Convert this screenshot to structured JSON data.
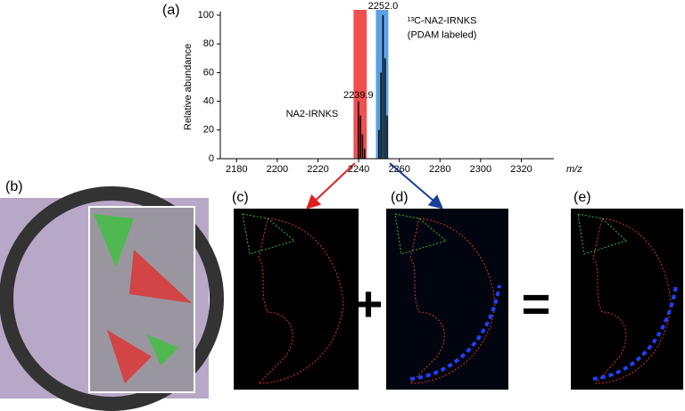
{
  "figure": {
    "panel_labels": [
      "(a)",
      "(b)",
      "(c)",
      "(d)",
      "(e)"
    ],
    "plus": "+",
    "equals": "="
  },
  "chart_data": {
    "type": "spectrum",
    "y_label": "Relative abundance",
    "x_label": "m/z",
    "xlim": [
      2172,
      2336
    ],
    "xticks": [
      2180,
      2200,
      2220,
      2240,
      2260,
      2280,
      2300,
      2320
    ],
    "ylim": [
      0,
      100
    ],
    "yticks": [
      0,
      20,
      40,
      60,
      80,
      100
    ],
    "highlights": [
      {
        "xlim": [
          2237.5,
          2244
        ],
        "color": "#f03030"
      },
      {
        "xlim": [
          2248.5,
          2254.6
        ],
        "color": "#3d8fe0"
      }
    ],
    "series": [
      {
        "name": "NA2-IRNKS",
        "color": "#000000",
        "x": [
          2239.9,
          2240.9,
          2241.9,
          2242.9
        ],
        "values": [
          40,
          30,
          17,
          7
        ]
      },
      {
        "name": "¹³C-NA2-IRNKS",
        "color": "#000000",
        "x": [
          2250.0,
          2251.0,
          2252.0,
          2253.0,
          2254.0
        ],
        "values": [
          20,
          60,
          100,
          70,
          30
        ]
      }
    ],
    "annotations": [
      {
        "text": "2239.9",
        "x": 2239.9,
        "y": 44
      },
      {
        "text": "NA2-IRNKS",
        "x": 2230,
        "y": 31
      },
      {
        "text": "2252.0",
        "x": 2252.0,
        "y": 106
      },
      {
        "text": "¹³C-NA2-IRNKS",
        "x": 2264,
        "y": 96
      },
      {
        "text": "(PDAM labeled)",
        "x": 2264,
        "y": 86
      }
    ]
  }
}
